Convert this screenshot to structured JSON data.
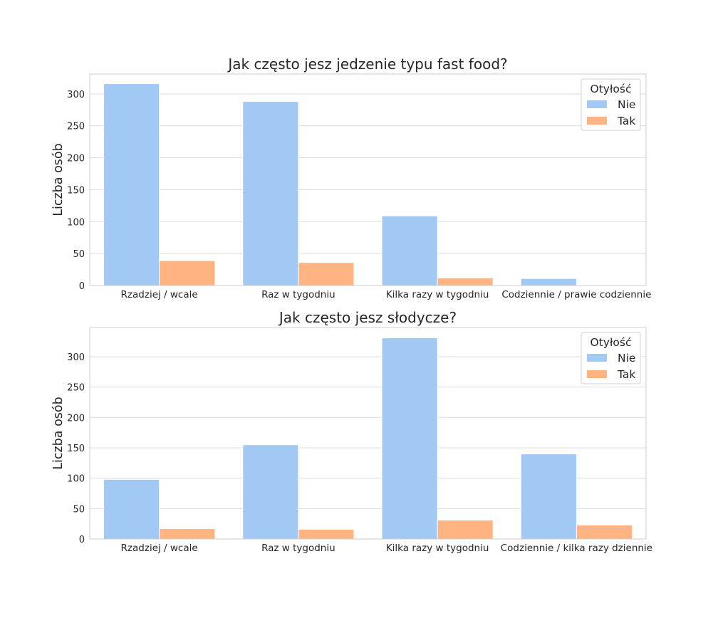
{
  "chart_data": [
    {
      "type": "bar",
      "title": "Jak często jesz jedzenie typu fast food?",
      "xlabel": "",
      "ylabel": "Liczba osób",
      "categories": [
        "Rzadziej / wcale",
        "Raz w tygodniu",
        "Kilka razy w tygodniu",
        "Codziennie / prawie codziennie"
      ],
      "series": [
        {
          "name": "Nie",
          "color": "#a1c9f4",
          "values": [
            316,
            288,
            109,
            11
          ]
        },
        {
          "name": "Tak",
          "color": "#ffb482",
          "values": [
            39,
            36,
            12,
            0
          ]
        }
      ],
      "ylim": [
        0,
        331
      ],
      "yticks": [
        0,
        50,
        100,
        150,
        200,
        250,
        300
      ],
      "grid": true,
      "legend": {
        "title": "Otyłość",
        "position": "top-right"
      }
    },
    {
      "type": "bar",
      "title": "Jak często jesz słodycze?",
      "xlabel": "",
      "ylabel": "Liczba osób",
      "categories": [
        "Rzadziej / wcale",
        "Raz w tygodniu",
        "Kilka razy w tygodniu",
        "Codziennie / kilka razy dziennie"
      ],
      "series": [
        {
          "name": "Nie",
          "color": "#a1c9f4",
          "values": [
            98,
            155,
            331,
            140
          ]
        },
        {
          "name": "Tak",
          "color": "#ffb482",
          "values": [
            17,
            16,
            31,
            23
          ]
        }
      ],
      "ylim": [
        0,
        348
      ],
      "yticks": [
        0,
        50,
        100,
        150,
        200,
        250,
        300
      ],
      "grid": true,
      "legend": {
        "title": "Otyłość",
        "position": "top-right"
      }
    }
  ]
}
